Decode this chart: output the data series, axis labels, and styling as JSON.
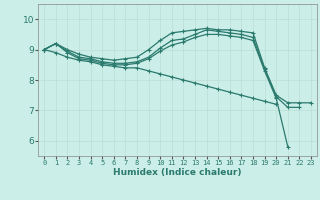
{
  "xlabel": "Humidex (Indice chaleur)",
  "bg_color": "#cceee8",
  "grid_color": "#bbddd5",
  "line_color": "#2a7a6e",
  "xlim": [
    -0.5,
    23.5
  ],
  "ylim": [
    5.5,
    10.5
  ],
  "y_ticks": [
    6,
    7,
    8,
    9,
    10
  ],
  "x_ticks": [
    0,
    1,
    2,
    3,
    4,
    5,
    6,
    7,
    8,
    9,
    10,
    11,
    12,
    13,
    14,
    15,
    16,
    17,
    18,
    19,
    20,
    21,
    22,
    23
  ],
  "series": [
    [
      9.0,
      9.2,
      9.0,
      8.85,
      8.75,
      8.7,
      8.65,
      8.7,
      8.75,
      9.0,
      9.3,
      9.55,
      9.6,
      9.65,
      9.7,
      9.65,
      9.65,
      9.6,
      9.55,
      8.4,
      7.5,
      7.25,
      7.25,
      7.25
    ],
    [
      9.0,
      9.2,
      8.95,
      8.75,
      8.7,
      8.6,
      8.55,
      8.55,
      8.6,
      8.75,
      9.05,
      9.3,
      9.35,
      9.5,
      9.65,
      9.6,
      9.55,
      9.5,
      9.4,
      8.35,
      7.45,
      7.1,
      7.1,
      null
    ],
    [
      9.0,
      9.2,
      8.9,
      8.7,
      8.65,
      8.55,
      8.5,
      8.5,
      8.55,
      8.7,
      8.95,
      9.15,
      9.25,
      9.4,
      9.5,
      9.5,
      9.45,
      9.4,
      9.3,
      8.3,
      7.4,
      5.8,
      null,
      null
    ],
    [
      9.0,
      8.9,
      8.75,
      8.65,
      8.6,
      8.5,
      8.45,
      8.4,
      8.4,
      8.3,
      8.2,
      8.1,
      8.0,
      7.9,
      7.8,
      7.7,
      7.6,
      7.5,
      7.4,
      7.3,
      7.2,
      null,
      null,
      null
    ]
  ],
  "marker": "+",
  "marker_size": 3,
  "linewidth": 0.9,
  "tick_fontsize": 5,
  "xlabel_fontsize": 6.5
}
